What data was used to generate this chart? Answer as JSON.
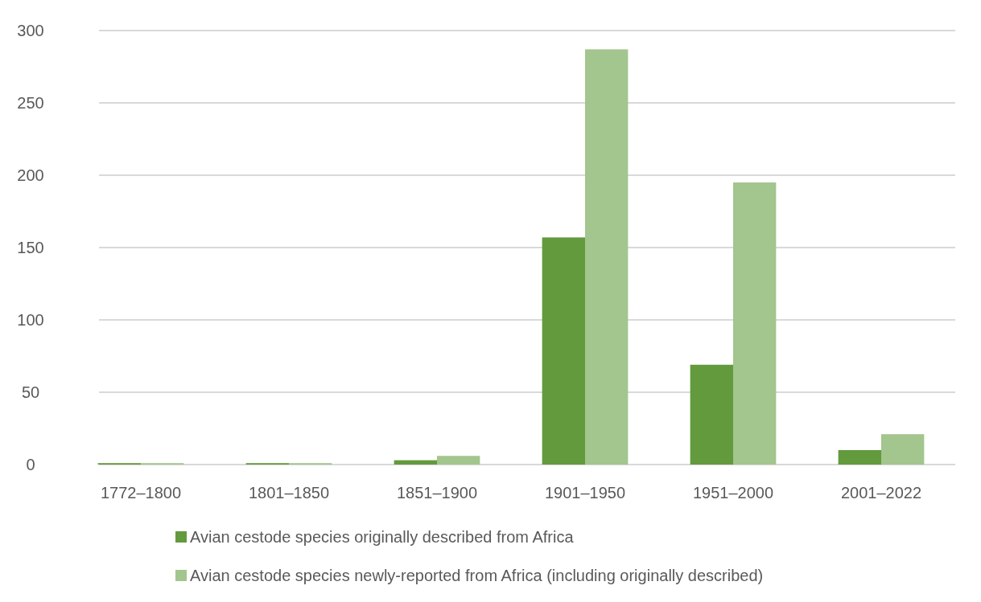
{
  "chart_data": {
    "type": "bar",
    "categories": [
      "1772–1800",
      "1801–1850",
      "1851–1900",
      "1901–1950",
      "1951–2000",
      "2001–2022"
    ],
    "series": [
      {
        "name": "Avian cestode species originally described from Africa",
        "color": "#629a3d",
        "values": [
          1,
          1,
          3,
          157,
          69,
          10
        ]
      },
      {
        "name": "Avian cestode species newly-reported from Africa (including originally described)",
        "color": "#a3c58e",
        "values": [
          1,
          1,
          6,
          287,
          195,
          21
        ]
      }
    ],
    "ylim": [
      0,
      300
    ],
    "yticks": [
      0,
      50,
      100,
      150,
      200,
      250,
      300
    ],
    "grid": "y",
    "legend": "bottom"
  }
}
